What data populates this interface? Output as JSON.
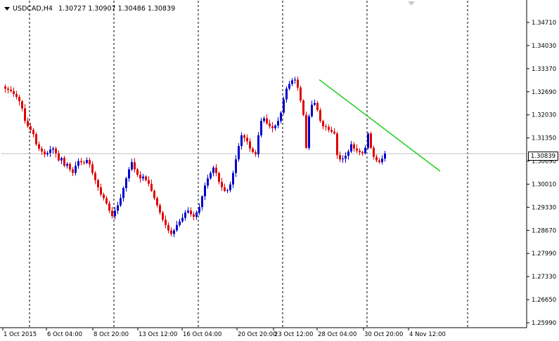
{
  "header": {
    "symbol": "USDCAD,H4",
    "ohlc": "1.30727 1.30907 1.30486 1.30839"
  },
  "price_axis": {
    "labels": [
      "1.34710",
      "1.34030",
      "1.33370",
      "1.32690",
      "1.32030",
      "1.31350",
      "1.30690",
      "1.30010",
      "1.29330",
      "1.28670",
      "1.27990",
      "1.27330",
      "1.26650",
      "1.25990"
    ],
    "current_price": "1.30839"
  },
  "time_axis": {
    "labels": [
      "1 Oct 2015",
      "6 Oct 04:00",
      "8 Oct 20:00",
      "13 Oct 12:00",
      "16 Oct 04:00",
      "20 Oct 20:00",
      "23 Oct 12:00",
      "28 Oct 04:00",
      "30 Oct 20:00",
      "4 Nov 12:00"
    ]
  },
  "colors": {
    "bull": "#0000CC",
    "bear": "#E00000",
    "trendline": "#22CC22",
    "grid": "#000000",
    "price_line": "#C0C0C0"
  },
  "chart_data": {
    "type": "candlestick",
    "series_name": "USDCAD,H4",
    "ylim": [
      1.2599,
      1.351
    ],
    "close_series": [
      1.3265,
      1.3262,
      1.3258,
      1.325,
      1.3242,
      1.323,
      1.321,
      1.3175,
      1.316,
      1.315,
      1.3138,
      1.311,
      1.3098,
      1.309,
      1.3082,
      1.3086,
      1.3095,
      1.3098,
      1.3085,
      1.3065,
      1.3072,
      1.305,
      1.3055,
      1.304,
      1.303,
      1.305,
      1.3063,
      1.306,
      1.3058,
      1.3066,
      1.3054,
      1.303,
      1.301,
      1.299,
      1.297,
      1.296,
      1.2945,
      1.2925,
      1.291,
      1.2925,
      1.294,
      1.296,
      1.2988,
      1.3015,
      1.304,
      1.306,
      1.304,
      1.3025,
      1.3015,
      1.302,
      1.301,
      1.3,
      1.298,
      1.296,
      1.294,
      1.292,
      1.29,
      1.2885,
      1.287,
      1.286,
      1.287,
      1.2885,
      1.2895,
      1.2905,
      1.292,
      1.2925,
      1.2915,
      1.2908,
      1.292,
      1.2935,
      1.2965,
      1.2995,
      1.3015,
      1.303,
      1.3045,
      1.303,
      1.3005,
      1.299,
      1.298,
      1.2982,
      1.2998,
      1.303,
      1.3068,
      1.3105,
      1.3135,
      1.3128,
      1.3118,
      1.3098,
      1.3088,
      1.3082,
      1.3135,
      1.3175,
      1.3182,
      1.3168,
      1.316,
      1.3155,
      1.3162,
      1.3175,
      1.3198,
      1.3235,
      1.3265,
      1.3278,
      1.3288,
      1.329,
      1.3268,
      1.3232,
      1.3192,
      1.31,
      1.3188,
      1.322,
      1.3225,
      1.3205,
      1.3175,
      1.316,
      1.3158,
      1.315,
      1.3145,
      1.314,
      1.308,
      1.3068,
      1.307,
      1.3078,
      1.309,
      1.311,
      1.3098,
      1.3092,
      1.3088,
      1.3085,
      1.31,
      1.314,
      1.31,
      1.3075,
      1.3065,
      1.306,
      1.307,
      1.3084
    ],
    "trendline": {
      "x": [
        "28 Oct 00:00",
        "5 Nov 00:00"
      ],
      "y": [
        1.329,
        1.3035
      ]
    },
    "current_price": 1.30839
  }
}
